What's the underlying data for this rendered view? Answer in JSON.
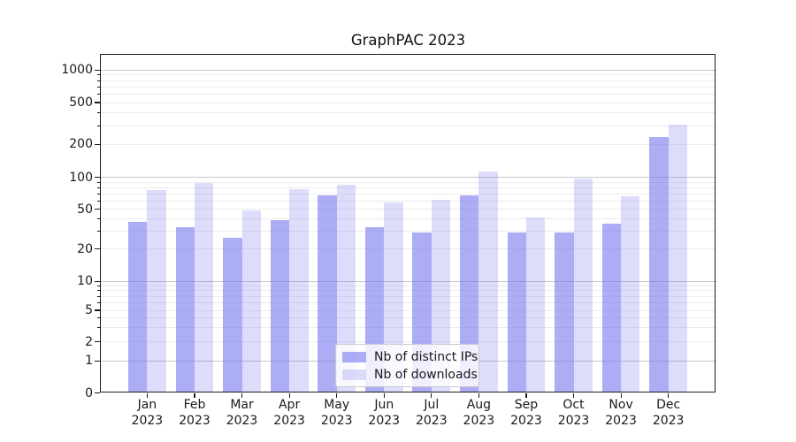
{
  "chart": {
    "title": "GraphPAC 2023"
  },
  "chart_data": {
    "type": "bar",
    "title": "GraphPAC 2023",
    "x_tick_months": [
      "Jan",
      "Feb",
      "Mar",
      "Apr",
      "May",
      "Jun",
      "Jul",
      "Aug",
      "Sep",
      "Oct",
      "Nov",
      "Dec"
    ],
    "x_tick_year": "2023",
    "y_ticks": [
      0,
      1,
      2,
      5,
      10,
      20,
      50,
      100,
      200,
      500,
      1000
    ],
    "y_axis_scale": "log-like (decades 1-1000 with 0 baseline)",
    "grid": true,
    "legend_position": "lower center",
    "series": [
      {
        "name": "Nb of distinct IPs",
        "color": "rgba(123,123,240,0.62)",
        "values": [
          37,
          33,
          26,
          39,
          68,
          33,
          29,
          67,
          29,
          29,
          36,
          235
        ]
      },
      {
        "name": "Nb of downloads",
        "color": "rgba(123,123,240,0.26)",
        "values": [
          76,
          88,
          49,
          78,
          85,
          58,
          62,
          113,
          41,
          97,
          66,
          310
        ]
      }
    ]
  },
  "colors": {
    "bar_base": "#7b7bf0",
    "grid_major": "#c6c6c6",
    "grid_minor": "#ececec",
    "axis": "#1a1a1a",
    "legend_border": "#cccccc"
  }
}
